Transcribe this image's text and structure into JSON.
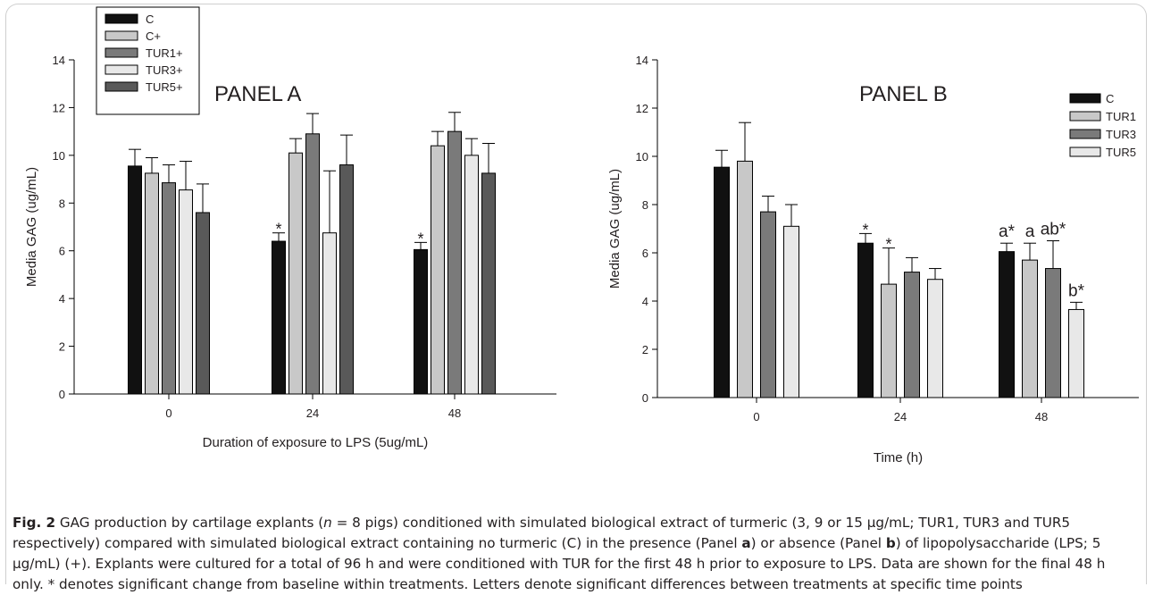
{
  "chart_data": [
    {
      "type": "bar",
      "panel_label": "PANEL A",
      "xlabel": "Duration of exposure to LPS (5ug/mL)",
      "ylabel": "Media GAG (ug/mL)",
      "ylim": [
        0,
        14
      ],
      "yticks": [
        "0",
        "2",
        "4",
        "6",
        "8",
        "10",
        "12",
        "14"
      ],
      "categories": [
        "0",
        "24",
        "48"
      ],
      "legend_position": "top-left",
      "series": [
        {
          "name": "C",
          "color": "#111111",
          "values": [
            9.55,
            6.4,
            6.05
          ],
          "errors": [
            0.7,
            0.35,
            0.3
          ],
          "labels": [
            "",
            "*",
            "*"
          ]
        },
        {
          "name": "C+",
          "color": "#c8c8c8",
          "values": [
            9.25,
            10.1,
            10.4
          ],
          "errors": [
            0.65,
            0.6,
            0.6
          ],
          "labels": [
            "",
            "",
            ""
          ]
        },
        {
          "name": "TUR1+",
          "color": "#7a7a7a",
          "values": [
            8.85,
            10.9,
            11.0
          ],
          "errors": [
            0.75,
            0.85,
            0.8
          ],
          "labels": [
            "",
            "",
            ""
          ]
        },
        {
          "name": "TUR3+",
          "color": "#e8e8e8",
          "values": [
            8.55,
            6.75,
            10.0
          ],
          "errors": [
            1.2,
            2.6,
            0.7
          ],
          "labels": [
            "",
            "",
            ""
          ]
        },
        {
          "name": "TUR5+",
          "color": "#595959",
          "values": [
            7.6,
            9.6,
            9.25
          ],
          "errors": [
            1.2,
            1.25,
            1.25
          ],
          "labels": [
            "",
            "",
            ""
          ]
        }
      ]
    },
    {
      "type": "bar",
      "panel_label": "PANEL B",
      "xlabel": "Time (h)",
      "ylabel": "Media GAG (ug/mL)",
      "ylim": [
        0,
        14
      ],
      "yticks": [
        "0",
        "2",
        "4",
        "6",
        "8",
        "10",
        "12",
        "14"
      ],
      "categories": [
        "0",
        "24",
        "48"
      ],
      "legend_position": "top-right",
      "series": [
        {
          "name": "C",
          "color": "#111111",
          "values": [
            9.55,
            6.4,
            6.05
          ],
          "errors": [
            0.7,
            0.4,
            0.35
          ],
          "labels": [
            "",
            "*",
            "a*"
          ]
        },
        {
          "name": "TUR1",
          "color": "#c8c8c8",
          "values": [
            9.8,
            4.7,
            5.7
          ],
          "errors": [
            1.6,
            1.5,
            0.7
          ],
          "labels": [
            "",
            "*",
            "a"
          ]
        },
        {
          "name": "TUR3",
          "color": "#7a7a7a",
          "values": [
            7.7,
            5.2,
            5.35
          ],
          "errors": [
            0.65,
            0.6,
            1.15
          ],
          "labels": [
            "",
            "",
            "ab*"
          ]
        },
        {
          "name": "TUR5",
          "color": "#e8e8e8",
          "values": [
            7.1,
            4.9,
            3.65
          ],
          "errors": [
            0.9,
            0.45,
            0.3
          ],
          "labels": [
            "",
            "",
            "b*"
          ]
        }
      ]
    }
  ],
  "caption": {
    "fig_label": "Fig. 2",
    "seg1": " GAG production by cartilage explants (",
    "n_italic": "n",
    "seg2": " = 8 pigs) conditioned with simulated biological extract of turmeric (3, 9 or 15 μg/mL; TUR1, TUR3 and TUR5 respectively) compared with simulated biological extract containing no turmeric (C) in the presence (Panel ",
    "panel_a": "a",
    "seg3": ") or absence (Panel ",
    "panel_b": "b",
    "seg4": ") of lipopolysaccharide (LPS; 5 μg/mL) (+). Explants were cultured for a total of 96 h and were conditioned with TUR for the first 48 h prior to exposure to LPS. Data are shown for the final 48 h only. * denotes significant change from baseline within treatments. Letters denote significant differences between treatments at specific time points"
  }
}
